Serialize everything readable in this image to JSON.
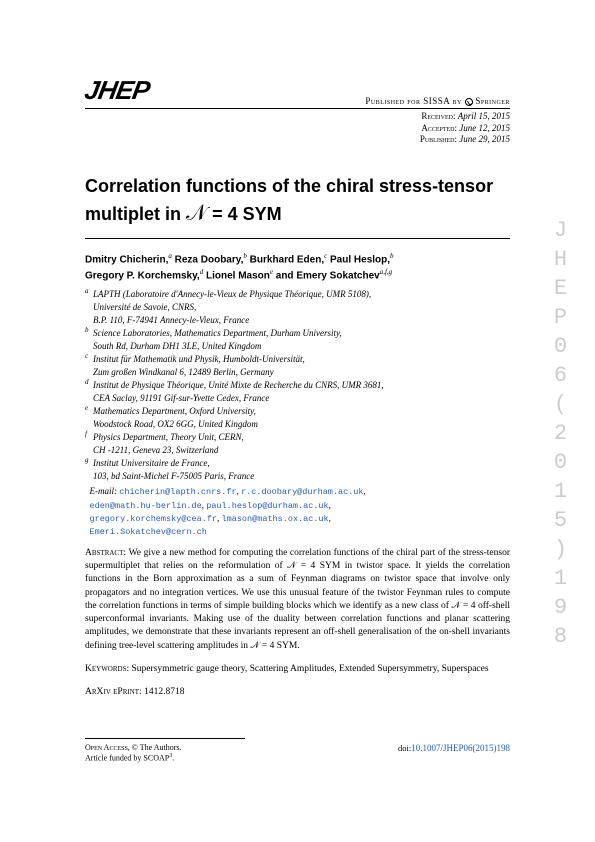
{
  "header": {
    "logo": "JHEP",
    "publisher_prefix": "Published for SISSA by",
    "publisher_name": "Springer",
    "received_label": "Received:",
    "received_date": "April 15, 2015",
    "accepted_label": "Accepted:",
    "accepted_date": "June 12, 2015",
    "published_label": "Published:",
    "published_date": "June 29, 2015"
  },
  "title_line1": "Correlation functions of the chiral stress-tensor",
  "title_line2_pre": "multiplet in ",
  "title_line2_eq": " = 4 SYM",
  "authors": {
    "a1_name": "Dmitry Chicherin,",
    "a1_aff": "a",
    "a2_name": "Reza Doobary,",
    "a2_aff": "b",
    "a3_name": "Burkhard Eden,",
    "a3_aff": "c",
    "a4_name": "Paul Heslop,",
    "a4_aff": "b",
    "a5_name": "Gregory P. Korchemsky,",
    "a5_aff": "d",
    "a6_name": "Lionel Mason",
    "a6_aff": "e",
    "a6_sup": "e",
    "and": " and ",
    "a7_name": "Emery Sokatchev",
    "a7_aff": "a,f,g",
    "a7_sup": "a,f,g"
  },
  "affiliations": [
    {
      "m": "a",
      "l1": "LAPTH (Laboratoire d'Annecy-le-Vieux de Physique Théorique, UMR 5108),",
      "l2": "Université de Savoie, CNRS,",
      "l3": "B.P. 110, F-74941 Annecy-le-Vieux, France"
    },
    {
      "m": "b",
      "l1": "Science Laboratories, Mathematics Department, Durham University,",
      "l2": "South Rd, Durham DH1 3LE, United Kingdom"
    },
    {
      "m": "c",
      "l1": "Institut für Mathematik und Physik, Humboldt-Universität,",
      "l2": "Zum großen Windkanal 6, 12489 Berlin, Germany"
    },
    {
      "m": "d",
      "l1": "Institut de Physique Théorique, Unité Mixte de Recherche du CNRS, UMR 3681,",
      "l2": "CEA Saclay, 91191 Gif-sur-Yvette Cedex, France"
    },
    {
      "m": "e",
      "l1": "Mathematics Department, Oxford University,",
      "l2": "Woodstock Road, OX2 6GG, United Kingdom"
    },
    {
      "m": "f",
      "l1": "Physics Department, Theory Unit, CERN,",
      "l2": "CH -1211, Geneva 23, Switzerland"
    },
    {
      "m": "g",
      "l1": "Institut Universitaire de France,",
      "l2": "103, bd Saint-Michel F-75005 Paris, France"
    }
  ],
  "email_label": "E-mail: ",
  "emails": [
    "chicherin@lapth.cnrs.fr",
    "r.c.doobary@durham.ac.uk",
    "eden@math.hu-berlin.de",
    "paul.heslop@durham.ac.uk",
    "gregory.korchemsky@cea.fr",
    "lmason@maths.ox.ac.uk",
    "Emeri.Sokatchev@cern.ch"
  ],
  "abstract_label": "Abstract: ",
  "abstract_text": "We give a new method for computing the correlation functions of the chiral part of the stress-tensor supermultiplet that relies on the reformulation of 𝒩 = 4 SYM in twistor space. It yields the correlation functions in the Born approximation as a sum of Feynman diagrams on twistor space that involve only propagators and no integration vertices. We use this unusual feature of the twistor Feynman rules to compute the correlation functions in terms of simple building blocks which we identify as a new class of 𝒩 = 4 off-shell superconformal invariants. Making use of the duality between correlation functions and planar scattering amplitudes, we demonstrate that these invariants represent an off-shell generalisation of the on-shell invariants defining tree-level scattering amplitudes in 𝒩 = 4 SYM.",
  "keywords_label": "Keywords: ",
  "keywords_text": "Supersymmetric gauge theory, Scattering Amplitudes, Extended Supersymmetry, Superspaces",
  "arxiv_label": "ArXiv ePrint: ",
  "arxiv_id": "1412.8718",
  "footer": {
    "open_access": "Open Access",
    "authors_c": ", © The Authors.",
    "funded": "Article funded by SCOAP",
    "doi_prefix": "doi:",
    "doi": "10.1007/JHEP06(2015)198"
  },
  "side_banner": "JHEP06(2015)198"
}
